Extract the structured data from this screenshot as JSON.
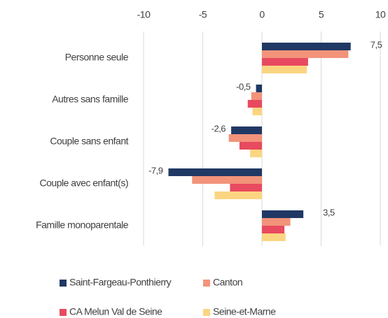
{
  "chart_data": {
    "type": "bar",
    "orientation": "horizontal",
    "categories": [
      "Personne seule",
      "Autres sans famille",
      "Couple sans enfant",
      "Couple avec enfant(s)",
      "Famille monoparentale"
    ],
    "series": [
      {
        "name": "Saint-Fargeau-Ponthierry",
        "color": "#203864",
        "values": [
          7.5,
          -0.5,
          -2.6,
          -7.9,
          3.5
        ],
        "value_labels": [
          "7,5",
          "-0,5",
          "-2,6",
          "-7,9",
          "3,5"
        ]
      },
      {
        "name": "Canton",
        "color": "#f2937a",
        "values": [
          7.3,
          -0.9,
          -2.8,
          -5.9,
          2.4
        ]
      },
      {
        "name": "CA Melun Val de Seine",
        "color": "#e84a5f",
        "values": [
          3.9,
          -1.2,
          -1.9,
          -2.7,
          1.9
        ]
      },
      {
        "name": "Seine-et-Marne",
        "color": "#fcd581",
        "values": [
          3.8,
          -0.8,
          -1.0,
          -4.0,
          2.0
        ]
      }
    ],
    "xlim": [
      -10,
      10
    ],
    "xticks": [
      -10,
      -5,
      0,
      5,
      10
    ],
    "grid": true
  }
}
